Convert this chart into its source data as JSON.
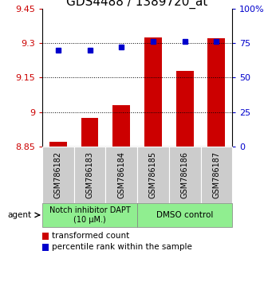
{
  "title": "GDS4488 / 1389720_at",
  "samples": [
    "GSM786182",
    "GSM786183",
    "GSM786184",
    "GSM786185",
    "GSM786186",
    "GSM786187"
  ],
  "bar_values": [
    8.87,
    8.975,
    9.03,
    9.325,
    9.18,
    9.32
  ],
  "dot_values": [
    70,
    70,
    72,
    76,
    76,
    76
  ],
  "bar_color": "#cc0000",
  "dot_color": "#0000cc",
  "ylim_left": [
    8.85,
    9.45
  ],
  "ylim_right": [
    0,
    100
  ],
  "yticks_left": [
    8.85,
    9.0,
    9.15,
    9.3,
    9.45
  ],
  "ytick_labels_left": [
    "8.85",
    "9",
    "9.15",
    "9.3",
    "9.45"
  ],
  "yticks_right": [
    0,
    25,
    50,
    75,
    100
  ],
  "ytick_labels_right": [
    "0",
    "25",
    "50",
    "75",
    "100%"
  ],
  "hlines": [
    9.0,
    9.15,
    9.3
  ],
  "group1_label": "Notch inhibitor DAPT\n(10 μM.)",
  "group2_label": "DMSO control",
  "group_bg_color": "#90EE90",
  "sample_bg_color": "#cccccc",
  "agent_label": "agent",
  "legend_bar_label": "transformed count",
  "legend_dot_label": "percentile rank within the sample",
  "bar_bottom": 8.85,
  "title_fontsize": 11,
  "tick_fontsize": 8,
  "sample_fontsize": 7,
  "legend_fontsize": 7.5
}
